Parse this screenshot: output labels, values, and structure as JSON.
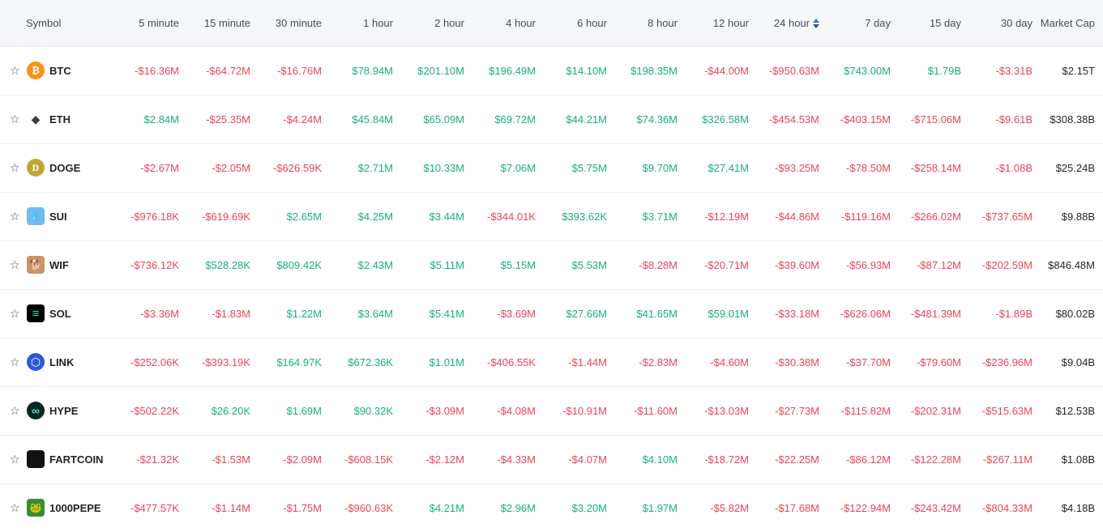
{
  "table": {
    "headers": {
      "symbol": "Symbol",
      "periods": [
        "5 minute",
        "15 minute",
        "30 minute",
        "1 hour",
        "2 hour",
        "4 hour",
        "6 hour",
        "8 hour",
        "12 hour",
        "24 hour",
        "7 day",
        "15 day",
        "30 day"
      ],
      "market_cap": "Market Cap"
    },
    "sorted_column": "24 hour",
    "colors": {
      "positive": "#1aac85",
      "negative": "#e8455a",
      "sort_active": "#1f7ae0"
    },
    "rows": [
      {
        "symbol": "BTC",
        "icon": "bitcoin-icon",
        "glyph": "₿",
        "icon_color": "#f7931a",
        "values": [
          "-$16.36M",
          "-$64.72M",
          "-$16.76M",
          "$78.94M",
          "$201.10M",
          "$196.49M",
          "$14.10M",
          "$198.35M",
          "-$44.00M",
          "-$950.63M",
          "$743.00M",
          "$1.79B",
          "-$3.31B"
        ],
        "market_cap": "$2.15T"
      },
      {
        "symbol": "ETH",
        "icon": "ethereum-icon",
        "glyph": "◆",
        "icon_color": "#ffffff",
        "values": [
          "$2.84M",
          "-$25.35M",
          "-$4.24M",
          "$45.84M",
          "$65.09M",
          "$69.72M",
          "$44.21M",
          "$74.36M",
          "$326.58M",
          "-$454.53M",
          "-$403.15M",
          "-$715.06M",
          "-$9.61B"
        ],
        "market_cap": "$308.38B"
      },
      {
        "symbol": "DOGE",
        "icon": "dogecoin-icon",
        "glyph": "D",
        "icon_color": "#c2a633",
        "values": [
          "-$2.67M",
          "-$2.05M",
          "-$626.59K",
          "$2.71M",
          "$10.33M",
          "$7.06M",
          "$5.75M",
          "$9.70M",
          "$27.41M",
          "-$93.25M",
          "-$78.50M",
          "-$258.14M",
          "-$1.08B"
        ],
        "market_cap": "$25.24B"
      },
      {
        "symbol": "SUI",
        "icon": "sui-droplet-icon",
        "glyph": "💧",
        "icon_color": "#6fbcf0",
        "values": [
          "-$976.18K",
          "-$619.69K",
          "$2.65M",
          "$4.25M",
          "$3.44M",
          "-$344.01K",
          "$393.62K",
          "$3.71M",
          "-$12.19M",
          "-$44.86M",
          "-$119.16M",
          "-$266.02M",
          "-$737.65M"
        ],
        "market_cap": "$9.88B"
      },
      {
        "symbol": "WIF",
        "icon": "dogwifhat-icon",
        "glyph": "🐕",
        "icon_color": "#c8946a",
        "values": [
          "-$736.12K",
          "$528.28K",
          "$809.42K",
          "$2.43M",
          "$5.11M",
          "$5.15M",
          "$5.53M",
          "-$8.28M",
          "-$20.71M",
          "-$39.60M",
          "-$56.93M",
          "-$87.12M",
          "-$202.59M"
        ],
        "market_cap": "$846.48M"
      },
      {
        "symbol": "SOL",
        "icon": "solana-icon",
        "glyph": "≡",
        "icon_color": "#000000",
        "values": [
          "-$3.36M",
          "-$1.83M",
          "$1.22M",
          "$3.64M",
          "$5.41M",
          "-$3.69M",
          "$27.66M",
          "$41.65M",
          "$59.01M",
          "-$33.18M",
          "-$626.06M",
          "-$481.39M",
          "-$1.89B"
        ],
        "market_cap": "$80.02B"
      },
      {
        "symbol": "LINK",
        "icon": "chainlink-icon",
        "glyph": "⬡",
        "icon_color": "#2a5ada",
        "values": [
          "-$252.06K",
          "-$393.19K",
          "$164.97K",
          "$672.36K",
          "$1.01M",
          "-$406.55K",
          "-$1.44M",
          "-$2.83M",
          "-$4.60M",
          "-$30.38M",
          "-$37.70M",
          "-$79.60M",
          "-$236.96M"
        ],
        "market_cap": "$9.04B"
      },
      {
        "symbol": "HYPE",
        "icon": "hyperliquid-icon",
        "glyph": "∞",
        "icon_color": "#072723",
        "values": [
          "-$502.22K",
          "$26.20K",
          "$1.69M",
          "$90.32K",
          "-$3.09M",
          "-$4.08M",
          "-$10.91M",
          "-$11.60M",
          "-$13.03M",
          "-$27.73M",
          "-$115.82M",
          "-$202.31M",
          "-$515.63M"
        ],
        "market_cap": "$12.53B"
      },
      {
        "symbol": "FARTCOIN",
        "icon": "fartcoin-icon",
        "glyph": "",
        "icon_color": "#111111",
        "values": [
          "-$21.32K",
          "-$1.53M",
          "-$2.09M",
          "-$608.15K",
          "-$2.12M",
          "-$4.33M",
          "-$4.07M",
          "$4.10M",
          "-$18.72M",
          "-$22.25M",
          "-$86.12M",
          "-$122.28M",
          "-$267.11M"
        ],
        "market_cap": "$1.08B"
      },
      {
        "symbol": "1000PEPE",
        "icon": "pepe-frog-icon",
        "glyph": "🐸",
        "icon_color": "#3d8b37",
        "values": [
          "-$477.57K",
          "-$1.14M",
          "-$1.75M",
          "-$960.63K",
          "$4.21M",
          "$2.96M",
          "$3.20M",
          "$1.97M",
          "-$5.82M",
          "-$17.68M",
          "-$122.94M",
          "-$243.42M",
          "-$804.33M"
        ],
        "market_cap": "$4.18B"
      }
    ]
  }
}
